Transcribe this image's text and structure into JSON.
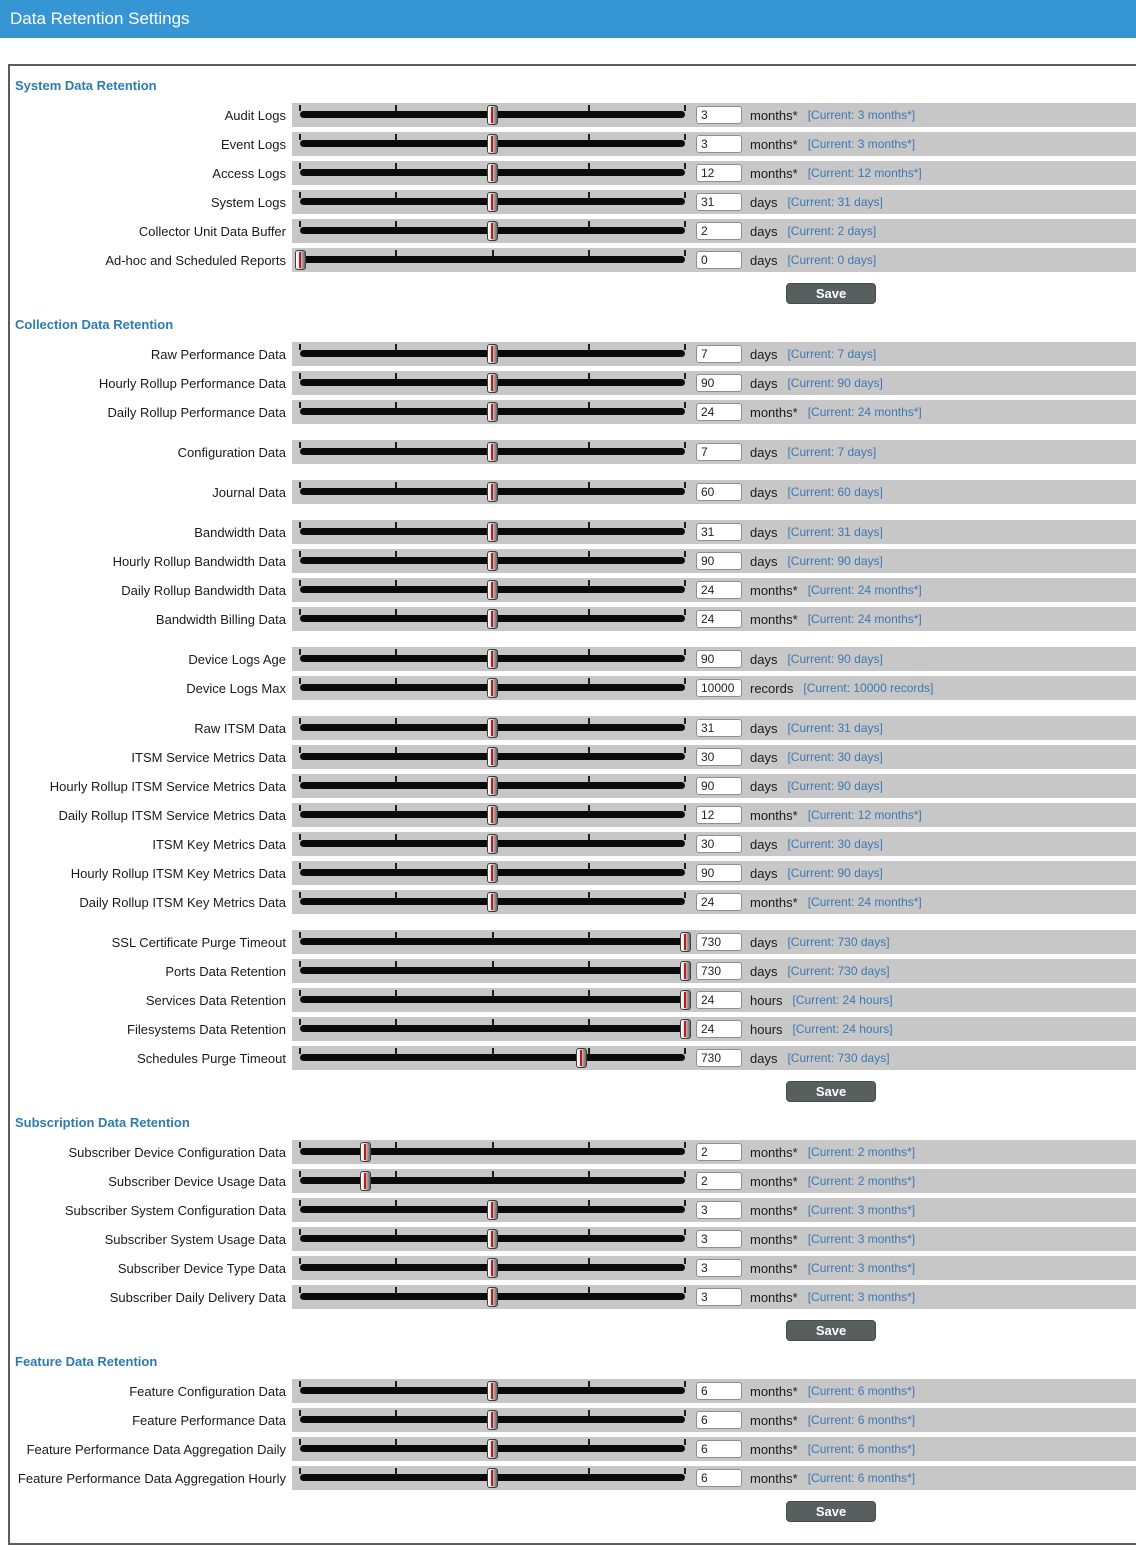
{
  "header": {
    "title": "Data Retention Settings"
  },
  "save_label": "Save",
  "colors": {
    "header_bar": "#3596d3",
    "section_heading": "#2d7cb0",
    "current_text": "#3c78b4",
    "save_button": "#575f5f",
    "slider_handle_stripe": "#bf1a17"
  },
  "sections": [
    {
      "heading": "System Data Retention",
      "rows": [
        {
          "label": "Audit Logs",
          "value": "3",
          "unit": "months*",
          "current": "[Current: 3 months*]",
          "pct": 50,
          "gap": false
        },
        {
          "label": "Event Logs",
          "value": "3",
          "unit": "months*",
          "current": "[Current: 3 months*]",
          "pct": 50,
          "gap": false
        },
        {
          "label": "Access Logs",
          "value": "12",
          "unit": "months*",
          "current": "[Current: 12 months*]",
          "pct": 50,
          "gap": false
        },
        {
          "label": "System Logs",
          "value": "31",
          "unit": "days",
          "current": "[Current: 31 days]",
          "pct": 50,
          "gap": false
        },
        {
          "label": "Collector Unit Data Buffer",
          "value": "2",
          "unit": "days",
          "current": "[Current: 2 days]",
          "pct": 50,
          "gap": false
        },
        {
          "label": "Ad-hoc and Scheduled Reports",
          "value": "0",
          "unit": "days",
          "current": "[Current: 0 days]",
          "pct": 0,
          "gap": false
        }
      ]
    },
    {
      "heading": "Collection Data Retention",
      "rows": [
        {
          "label": "Raw Performance Data",
          "value": "7",
          "unit": "days",
          "current": "[Current: 7 days]",
          "pct": 50,
          "gap": false
        },
        {
          "label": "Hourly Rollup Performance Data",
          "value": "90",
          "unit": "days",
          "current": "[Current: 90 days]",
          "pct": 50,
          "gap": false
        },
        {
          "label": "Daily Rollup Performance Data",
          "value": "24",
          "unit": "months*",
          "current": "[Current: 24 months*]",
          "pct": 50,
          "gap": false
        },
        {
          "label": "Configuration Data",
          "value": "7",
          "unit": "days",
          "current": "[Current: 7 days]",
          "pct": 50,
          "gap": true
        },
        {
          "label": "Journal Data",
          "value": "60",
          "unit": "days",
          "current": "[Current: 60 days]",
          "pct": 50,
          "gap": true
        },
        {
          "label": "Bandwidth Data",
          "value": "31",
          "unit": "days",
          "current": "[Current: 31 days]",
          "pct": 50,
          "gap": true
        },
        {
          "label": "Hourly Rollup Bandwidth Data",
          "value": "90",
          "unit": "days",
          "current": "[Current: 90 days]",
          "pct": 50,
          "gap": false
        },
        {
          "label": "Daily Rollup Bandwidth Data",
          "value": "24",
          "unit": "months*",
          "current": "[Current: 24 months*]",
          "pct": 50,
          "gap": false
        },
        {
          "label": "Bandwidth Billing Data",
          "value": "24",
          "unit": "months*",
          "current": "[Current: 24 months*]",
          "pct": 50,
          "gap": false
        },
        {
          "label": "Device Logs Age",
          "value": "90",
          "unit": "days",
          "current": "[Current: 90 days]",
          "pct": 50,
          "gap": true
        },
        {
          "label": "Device Logs Max",
          "value": "10000",
          "unit": "records",
          "current": "[Current: 10000 records]",
          "pct": 50,
          "gap": false
        },
        {
          "label": "Raw ITSM Data",
          "value": "31",
          "unit": "days",
          "current": "[Current: 31 days]",
          "pct": 50,
          "gap": true
        },
        {
          "label": "ITSM Service Metrics Data",
          "value": "30",
          "unit": "days",
          "current": "[Current: 30 days]",
          "pct": 50,
          "gap": false
        },
        {
          "label": "Hourly Rollup ITSM Service Metrics Data",
          "value": "90",
          "unit": "days",
          "current": "[Current: 90 days]",
          "pct": 50,
          "gap": false
        },
        {
          "label": "Daily Rollup ITSM Service Metrics Data",
          "value": "12",
          "unit": "months*",
          "current": "[Current: 12 months*]",
          "pct": 50,
          "gap": false
        },
        {
          "label": "ITSM Key Metrics Data",
          "value": "30",
          "unit": "days",
          "current": "[Current: 30 days]",
          "pct": 50,
          "gap": false
        },
        {
          "label": "Hourly Rollup ITSM Key Metrics Data",
          "value": "90",
          "unit": "days",
          "current": "[Current: 90 days]",
          "pct": 50,
          "gap": false
        },
        {
          "label": "Daily Rollup ITSM Key Metrics Data",
          "value": "24",
          "unit": "months*",
          "current": "[Current: 24 months*]",
          "pct": 50,
          "gap": false
        },
        {
          "label": "SSL Certificate Purge Timeout",
          "value": "730",
          "unit": "days",
          "current": "[Current: 730 days]",
          "pct": 100,
          "gap": true
        },
        {
          "label": "Ports Data Retention",
          "value": "730",
          "unit": "days",
          "current": "[Current: 730 days]",
          "pct": 100,
          "gap": false
        },
        {
          "label": "Services Data Retention",
          "value": "24",
          "unit": "hours",
          "current": "[Current: 24 hours]",
          "pct": 100,
          "gap": false
        },
        {
          "label": "Filesystems Data Retention",
          "value": "24",
          "unit": "hours",
          "current": "[Current: 24 hours]",
          "pct": 100,
          "gap": false
        },
        {
          "label": "Schedules Purge Timeout",
          "value": "730",
          "unit": "days",
          "current": "[Current: 730 days]",
          "pct": 73,
          "gap": false
        }
      ]
    },
    {
      "heading": "Subscription Data Retention",
      "rows": [
        {
          "label": "Subscriber Device Configuration Data",
          "value": "2",
          "unit": "months*",
          "current": "[Current: 2 months*]",
          "pct": 17,
          "gap": false
        },
        {
          "label": "Subscriber Device Usage Data",
          "value": "2",
          "unit": "months*",
          "current": "[Current: 2 months*]",
          "pct": 17,
          "gap": false
        },
        {
          "label": "Subscriber System Configuration Data",
          "value": "3",
          "unit": "months*",
          "current": "[Current: 3 months*]",
          "pct": 50,
          "gap": false
        },
        {
          "label": "Subscriber System Usage Data",
          "value": "3",
          "unit": "months*",
          "current": "[Current: 3 months*]",
          "pct": 50,
          "gap": false
        },
        {
          "label": "Subscriber Device Type Data",
          "value": "3",
          "unit": "months*",
          "current": "[Current: 3 months*]",
          "pct": 50,
          "gap": false
        },
        {
          "label": "Subscriber Daily Delivery Data",
          "value": "3",
          "unit": "months*",
          "current": "[Current: 3 months*]",
          "pct": 50,
          "gap": false
        }
      ]
    },
    {
      "heading": "Feature Data Retention",
      "rows": [
        {
          "label": "Feature Configuration Data",
          "value": "6",
          "unit": "months*",
          "current": "[Current: 6 months*]",
          "pct": 50,
          "gap": false
        },
        {
          "label": "Feature Performance Data",
          "value": "6",
          "unit": "months*",
          "current": "[Current: 6 months*]",
          "pct": 50,
          "gap": false
        },
        {
          "label": "Feature Performance Data Aggregation Daily",
          "value": "6",
          "unit": "months*",
          "current": "[Current: 6 months*]",
          "pct": 50,
          "gap": false
        },
        {
          "label": "Feature Performance Data Aggregation Hourly",
          "value": "6",
          "unit": "months*",
          "current": "[Current: 6 months*]",
          "pct": 50,
          "gap": false
        }
      ]
    }
  ]
}
